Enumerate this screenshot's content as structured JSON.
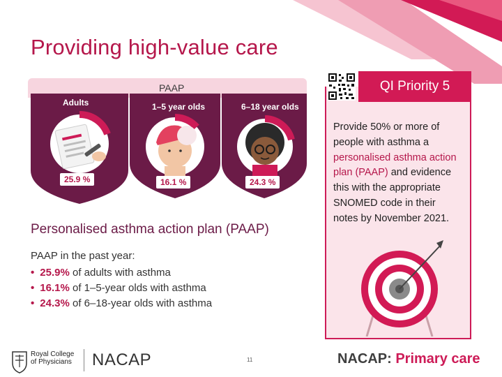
{
  "slide": {
    "title": "Providing high-value care",
    "page_number": "11"
  },
  "infographic": {
    "banner": "PAAP",
    "groups": [
      {
        "label": "Adults",
        "value": "25.9 %",
        "fill": 0.259
      },
      {
        "label": "1–5 year olds",
        "value": "16.1 %",
        "fill": 0.161
      },
      {
        "label": "6–18 year olds",
        "value": "24.3 %",
        "fill": 0.243
      }
    ],
    "heading": "Personalised asthma action plan (PAAP)"
  },
  "stats": {
    "intro": "PAAP in the past year:",
    "items": [
      {
        "pct": "25.9%",
        "text": " of adults with asthma"
      },
      {
        "pct": "16.1%",
        "text": " of 1–5-year olds with asthma"
      },
      {
        "pct": "24.3%",
        "text": " of 6–18-year olds with asthma"
      }
    ]
  },
  "qi": {
    "tab_label": "QI Priority 5",
    "text_1": "Provide 50% or more of people with asthma a ",
    "text_accent": "personalised asthma action plan (PAAP)",
    "text_2": " and evidence this with the appropriate SNOMED code in their notes by November 2021."
  },
  "footer": {
    "rcp_line1": "Royal College",
    "rcp_line2": "of Physicians",
    "nacap": "NACAP",
    "brand_main": "NACAP:",
    "brand_accent": " Primary care"
  },
  "colors": {
    "accent": "#cd1b57",
    "plum": "#6b1b47",
    "card": "#fbe4ea"
  },
  "icons": [
    "qr-code-icon",
    "target-icon",
    "rcp-crest-icon"
  ]
}
